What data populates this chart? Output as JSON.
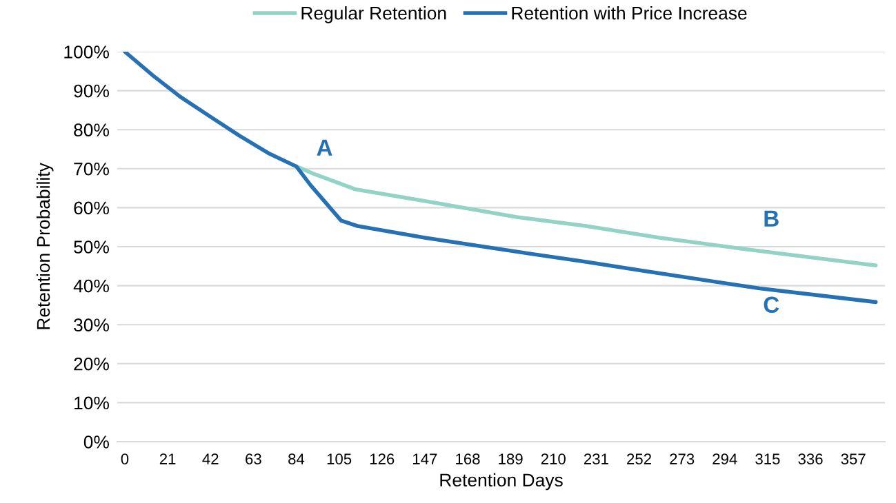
{
  "chart_data": {
    "type": "line",
    "xlabel": "Retention Days",
    "ylabel": "Retention Probability",
    "series": [
      {
        "name": "Regular Retention",
        "color": "#92d3c5",
        "x": [
          84,
          92,
          113,
          147,
          192,
          226,
          262,
          305,
          368
        ],
        "values": [
          70.6,
          68.8,
          64.7,
          61.7,
          57.6,
          55.3,
          52.3,
          49.3,
          45.2
        ]
      },
      {
        "name": "Retention with Price Increase",
        "color": "#2670b4",
        "x": [
          0,
          14,
          27,
          42,
          56,
          71,
          84,
          91,
          106,
          114,
          147,
          187,
          226,
          254,
          311,
          368
        ],
        "values": [
          100,
          93.8,
          88.5,
          83.3,
          78.5,
          73.8,
          70.6,
          65.8,
          56.7,
          55.3,
          52.3,
          49.1,
          46.1,
          43.8,
          39.3,
          35.8
        ]
      }
    ],
    "annotations": [
      "A",
      "B",
      "C"
    ],
    "xlim": [
      -3.7,
      372.5
    ],
    "xticks": [
      0,
      21,
      42,
      63,
      84,
      105,
      126,
      147,
      168,
      189,
      210,
      231,
      252,
      273,
      294,
      315,
      336,
      357
    ],
    "ylim": [
      0,
      100
    ],
    "yticks": [
      {
        "value": 0,
        "label": "0%"
      },
      {
        "value": 10,
        "label": "10%"
      },
      {
        "value": 20,
        "label": "20%"
      },
      {
        "value": 30,
        "label": "30%"
      },
      {
        "value": 40,
        "label": "40%"
      },
      {
        "value": 50,
        "label": "50%"
      },
      {
        "value": 60,
        "label": "60%"
      },
      {
        "value": 70,
        "label": "70%"
      },
      {
        "value": 80,
        "label": "80%"
      },
      {
        "value": 90,
        "label": "90%"
      },
      {
        "value": 100,
        "label": "100%"
      }
    ],
    "grid": "y",
    "legend": "top",
    "marker": "none",
    "line_style": "solid"
  }
}
